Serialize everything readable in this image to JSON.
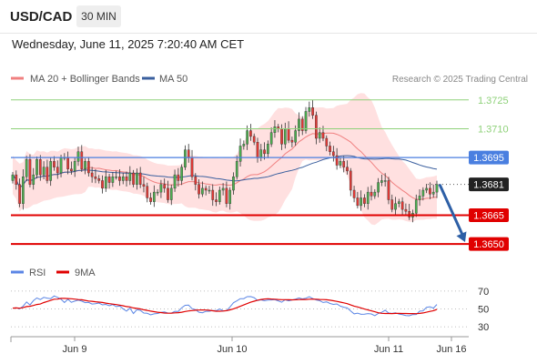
{
  "header": {
    "symbol": "USD/CAD",
    "timeframe": "30 MIN",
    "datetime": "Wednesday, June 11, 2025 7:20:40 AM CET"
  },
  "credit": "Research © 2025 Trading Central",
  "colors": {
    "up": "#4caf50",
    "down": "#e53935",
    "band_fill": "#ffd6d6",
    "ma20": "#f08080",
    "ma50": "#3a5f9e",
    "resistance": "#8fd17a",
    "pivot": "#4a7fe0",
    "support": "#e00000",
    "current": "#222222",
    "arrow": "#2d5fa6",
    "rsi": "#5b86e5",
    "rsi_ma": "#e00000"
  },
  "chart_data": [
    {
      "type": "candlestick",
      "title": "USD/CAD",
      "legend": [
        "MA 20 + Bollinger Bands",
        "MA 50"
      ],
      "legend_placement": "top-left",
      "ylim": [
        1.3642,
        1.3732
      ],
      "x_ticks": [
        "Jun 9",
        "Jun 10",
        "Jun 11",
        "Jun 16"
      ],
      "close": [
        1.3686,
        1.3681,
        1.3671,
        1.3685,
        1.3694,
        1.3681,
        1.3686,
        1.3694,
        1.3686,
        1.369,
        1.3683,
        1.3693,
        1.369,
        1.3687,
        1.3695,
        1.3695,
        1.3689,
        1.3688,
        1.3693,
        1.3698,
        1.3689,
        1.3693,
        1.3687,
        1.3685,
        1.3684,
        1.3683,
        1.3679,
        1.3685,
        1.3682,
        1.3685,
        1.3685,
        1.3683,
        1.3685,
        1.3683,
        1.3687,
        1.3681,
        1.3687,
        1.3681,
        1.368,
        1.3674,
        1.3672,
        1.3677,
        1.3677,
        1.3681,
        1.3679,
        1.3673,
        1.3679,
        1.3686,
        1.3683,
        1.369,
        1.3699,
        1.3695,
        1.3685,
        1.3681,
        1.3676,
        1.3679,
        1.3678,
        1.3678,
        1.3673,
        1.3672,
        1.3678,
        1.3679,
        1.3671,
        1.3678,
        1.3685,
        1.3693,
        1.3701,
        1.3702,
        1.3709,
        1.3706,
        1.3703,
        1.3695,
        1.3699,
        1.3697,
        1.3702,
        1.3708,
        1.3711,
        1.371,
        1.3702,
        1.371,
        1.3704,
        1.3703,
        1.3709,
        1.3715,
        1.3709,
        1.3719,
        1.3721,
        1.3717,
        1.3705,
        1.3708,
        1.3705,
        1.3701,
        1.3698,
        1.3696,
        1.3691,
        1.3693,
        1.369,
        1.3688,
        1.3678,
        1.3674,
        1.367,
        1.3674,
        1.3671,
        1.3677,
        1.3675,
        1.3677,
        1.3682,
        1.3683,
        1.3683,
        1.3673,
        1.3668,
        1.3671,
        1.3672,
        1.3668,
        1.3667,
        1.3664,
        1.3666,
        1.3673,
        1.3675,
        1.3678,
        1.3679,
        1.3676,
        1.3677,
        1.3681
      ],
      "annotations": {
        "levels": [
          {
            "kind": "resistance",
            "value": "1.3725"
          },
          {
            "kind": "resistance",
            "value": "1.3710"
          },
          {
            "kind": "pivot",
            "value": "1.3695"
          },
          {
            "kind": "current",
            "value": "1.3681"
          },
          {
            "kind": "support",
            "value": "1.3665"
          },
          {
            "kind": "support",
            "value": "1.3650"
          }
        ],
        "projection": {
          "from": 1.3681,
          "to": 1.3651
        }
      }
    },
    {
      "type": "line",
      "legend": [
        "RSI",
        "9MA"
      ],
      "legend_placement": "top-left",
      "ylim": [
        25,
        75
      ],
      "y_ticks": [
        "70",
        "50",
        "30"
      ],
      "series": [
        {
          "name": "RSI",
          "values": [
            50.9,
            51.3,
            50.2,
            53.1,
            57.9,
            54.5,
            59.3,
            62.3,
            60.5,
            63.0,
            62.1,
            61.5,
            64.6,
            63.0,
            60.9,
            57.2,
            60.8,
            57.4,
            58.8,
            59.9,
            58.8,
            57.0,
            57.3,
            55.5,
            55.8,
            56.6,
            54.6,
            55.1,
            53.6,
            54.9,
            52.6,
            53.4,
            50.2,
            47.6,
            50.9,
            44.9,
            49.2,
            48.4,
            45.4,
            45.1,
            43.4,
            44.5,
            44.9,
            46.1,
            46.6,
            45.4,
            45.3,
            47.3,
            47.2,
            51.3,
            54.1,
            54.3,
            50.3,
            49.3,
            46.3,
            45.7,
            47.3,
            47.4,
            48.3,
            48.1,
            50.0,
            48.0,
            48.1,
            52.2,
            56.9,
            59.1,
            61.5,
            61.5,
            63.8,
            63.9,
            62.7,
            59.5,
            60.2,
            59.2,
            59.9,
            60.1,
            60.4,
            59.1,
            57.5,
            60.3,
            59.1,
            60.1,
            61.0,
            62.3,
            61.2,
            62.0,
            63.7,
            61.6,
            60.1,
            59.3,
            57.2,
            58.0,
            56.1,
            55.1,
            55.6,
            53.2,
            51.9,
            51.1,
            47.8,
            44.5,
            45.3,
            44.0,
            44.1,
            44.8,
            44.4,
            42.4,
            44.9,
            46.2,
            48.6,
            45.4,
            45.0,
            45.6,
            44.2,
            43.6,
            42.7,
            42.3,
            43.7,
            43.8,
            47.5,
            47.9,
            51.8,
            52.4,
            50.9,
            55.0
          ]
        },
        {
          "name": "9MA",
          "values": [
            50.9,
            51.1,
            50.8,
            51.4,
            52.7,
            53.0,
            53.9,
            55.0,
            55.5,
            57.1,
            58.4,
            59.6,
            60.9,
            61.0,
            61.8,
            61.8,
            61.6,
            61.4,
            61.0,
            60.5,
            60.3,
            59.6,
            58.9,
            58.6,
            58.1,
            57.7,
            57.2,
            56.5,
            55.9,
            55.4,
            54.9,
            54.3,
            53.6,
            52.7,
            52.2,
            51.1,
            50.6,
            50.0,
            49.1,
            48.4,
            47.6,
            46.9,
            46.3,
            45.9,
            45.4,
            45.2,
            45.3,
            45.6,
            45.8,
            46.3,
            47.1,
            47.8,
            48.2,
            48.6,
            48.8,
            48.9,
            48.8,
            48.5,
            48.0,
            47.4,
            47.4,
            47.7,
            48.1,
            49.0,
            50.1,
            51.4,
            53.0,
            54.5,
            56.0,
            57.5,
            58.7,
            59.8,
            60.6,
            61.1,
            61.4,
            61.1,
            60.9,
            60.6,
            60.4,
            60.4,
            60.3,
            60.2,
            60.3,
            60.5,
            60.6,
            60.6,
            60.9,
            61.0,
            60.9,
            60.6,
            60.5,
            60.3,
            59.8,
            59.2,
            58.5,
            57.7,
            56.8,
            55.9,
            54.5,
            53.2,
            52.2,
            51.1,
            49.9,
            48.9,
            47.9,
            46.8,
            45.7,
            45.1,
            44.9,
            44.9,
            44.8,
            45.0,
            45.0,
            44.9,
            44.9,
            44.8,
            44.8,
            44.7,
            45.0,
            45.5,
            46.3,
            47.2,
            48.1,
            49.5
          ]
        }
      ]
    }
  ]
}
